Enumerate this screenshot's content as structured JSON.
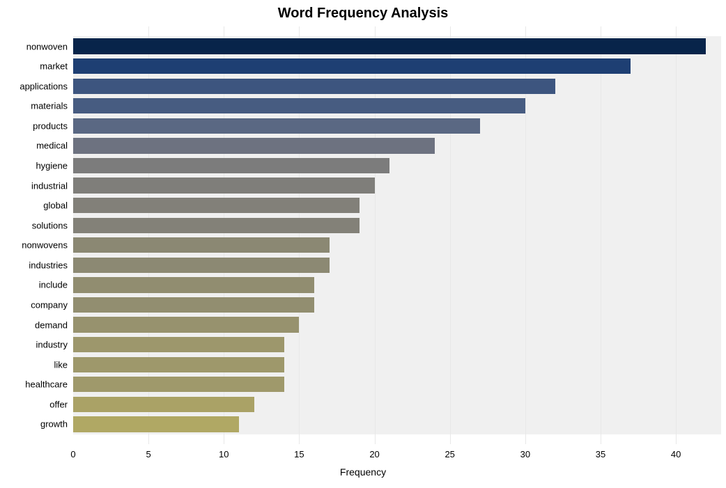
{
  "chart": {
    "type": "bar-horizontal",
    "title": "Word Frequency Analysis",
    "title_fontsize": 20,
    "title_fontweight": "bold",
    "title_color": "#000000",
    "x_axis_label": "Frequency",
    "x_axis_label_fontsize": 14,
    "tick_fontsize": 13,
    "y_label_fontsize": 13,
    "background_color": "#ffffff",
    "plot_band_color": "#f0f0f0",
    "grid_color": "#e8e8e8",
    "xlim": [
      0,
      43
    ],
    "xtick_step": 5,
    "xticks": [
      0,
      5,
      10,
      15,
      20,
      25,
      30,
      35,
      40
    ],
    "bar_relative_height": 0.78,
    "words": [
      {
        "label": "nonwoven",
        "value": 42,
        "color": "#08244a"
      },
      {
        "label": "market",
        "value": 37,
        "color": "#1e3f73"
      },
      {
        "label": "applications",
        "value": 32,
        "color": "#3d557f"
      },
      {
        "label": "materials",
        "value": 30,
        "color": "#475c81"
      },
      {
        "label": "products",
        "value": 27,
        "color": "#5a6883"
      },
      {
        "label": "medical",
        "value": 24,
        "color": "#6d7280"
      },
      {
        "label": "hygiene",
        "value": 21,
        "color": "#7c7c7c"
      },
      {
        "label": "industrial",
        "value": 20,
        "color": "#7f7e7a"
      },
      {
        "label": "global",
        "value": 19,
        "color": "#828079"
      },
      {
        "label": "solutions",
        "value": 19,
        "color": "#838178"
      },
      {
        "label": "nonwovens",
        "value": 17,
        "color": "#8b8873"
      },
      {
        "label": "industries",
        "value": 17,
        "color": "#8c8973"
      },
      {
        "label": "include",
        "value": 16,
        "color": "#918d70"
      },
      {
        "label": "company",
        "value": 16,
        "color": "#928e70"
      },
      {
        "label": "demand",
        "value": 15,
        "color": "#97926e"
      },
      {
        "label": "industry",
        "value": 14,
        "color": "#9d976c"
      },
      {
        "label": "like",
        "value": 14,
        "color": "#9e986b"
      },
      {
        "label": "healthcare",
        "value": 14,
        "color": "#9f996b"
      },
      {
        "label": "offer",
        "value": 12,
        "color": "#aaa266"
      },
      {
        "label": "growth",
        "value": 11,
        "color": "#b0a864"
      }
    ]
  }
}
